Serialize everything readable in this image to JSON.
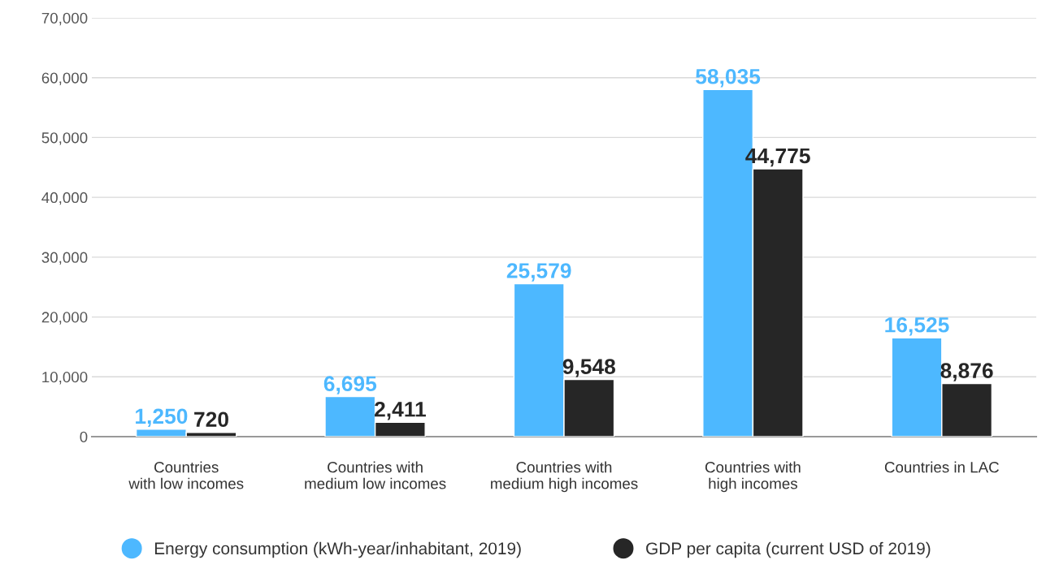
{
  "chart_data": {
    "type": "bar",
    "categories": [
      "Countries\nwith low incomes",
      "Countries with\nmedium low incomes",
      "Countries with\nmedium high incomes",
      "Countries with\nhigh incomes",
      "Countries in LAC"
    ],
    "series": [
      {
        "name": "Energy consumption (kWh-year/inhabitant, 2019)",
        "color": "#4db8ff",
        "values": [
          1250,
          6695,
          25579,
          58035,
          16525
        ]
      },
      {
        "name": "GDP per capita (current USD of 2019)",
        "color": "#262626",
        "values": [
          720,
          2411,
          9548,
          44775,
          8876
        ]
      }
    ],
    "ylim": [
      0,
      70000
    ],
    "yticks": [
      {
        "value": 0,
        "label": "0"
      },
      {
        "value": 10000,
        "label": "10,000"
      },
      {
        "value": 20000,
        "label": "20,000"
      },
      {
        "value": 30000,
        "label": "30,000"
      },
      {
        "value": 40000,
        "label": "40,000"
      },
      {
        "value": 50000,
        "label": "50,000"
      },
      {
        "value": 60000,
        "label": "60,000"
      },
      {
        "value": 70000,
        "label": "70,000"
      }
    ],
    "value_labels": [
      [
        "1,250",
        "6,695",
        "25,579",
        "58,035",
        "16,525"
      ],
      [
        "720",
        "2,411",
        "9,548",
        "44,775",
        "8,876"
      ]
    ],
    "grid": "y",
    "legend": "bottom",
    "marker": "circle"
  }
}
